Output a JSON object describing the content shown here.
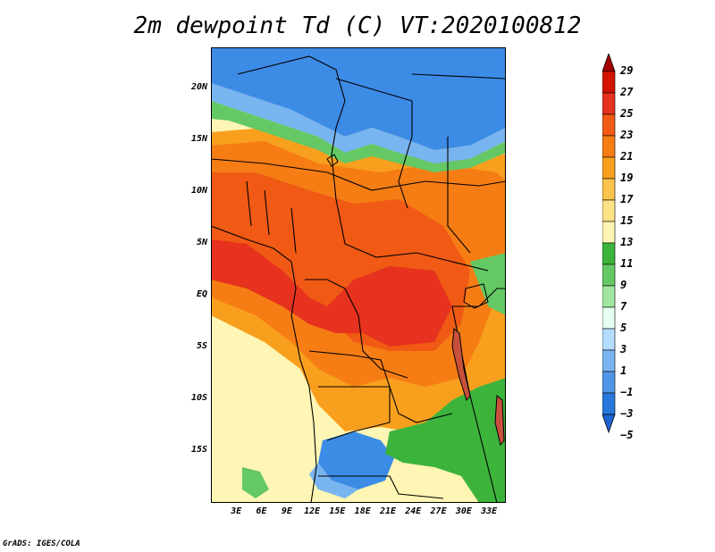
{
  "title": "2m dewpoint Td (C) VT:2020100812",
  "footer": "GrADS: IGES/COLA",
  "map": {
    "lat_range": [
      -20,
      24
    ],
    "lon_range": [
      0,
      35
    ],
    "lat_ticks": [
      "20N",
      "15N",
      "10N",
      "5N",
      "EQ",
      "5S",
      "10S",
      "15S"
    ],
    "lat_values": [
      20,
      15,
      10,
      5,
      0,
      -5,
      -10,
      -15
    ],
    "lon_ticks": [
      "3E",
      "6E",
      "9E",
      "12E",
      "15E",
      "18E",
      "21E",
      "24E",
      "27E",
      "30E",
      "33E"
    ],
    "lon_values": [
      3,
      6,
      9,
      12,
      15,
      18,
      21,
      24,
      27,
      30,
      33
    ]
  },
  "colorbar": {
    "labels": [
      "29",
      "27",
      "25",
      "23",
      "21",
      "19",
      "17",
      "15",
      "13",
      "11",
      "9",
      "7",
      "5",
      "3",
      "1",
      "−1",
      "−3",
      "−5"
    ],
    "colors": [
      "#a50000",
      "#d21400",
      "#e6321e",
      "#f05a14",
      "#f57d14",
      "#f8a01e",
      "#fac34b",
      "#fde187",
      "#fff5b4",
      "#3cb43c",
      "#64c864",
      "#a0e6a0",
      "#e6fff0",
      "#b4dcff",
      "#78b4f0",
      "#5096e6",
      "#2878dc",
      "#1e64d2"
    ]
  },
  "colors": {
    "blue": "#3c8ce6",
    "lightblue": "#78b4f0",
    "green": "#64c864",
    "yellow": "#fff5b4",
    "orange": "#f8a01e",
    "deeporange": "#f05a14",
    "red": "#e6321e"
  }
}
